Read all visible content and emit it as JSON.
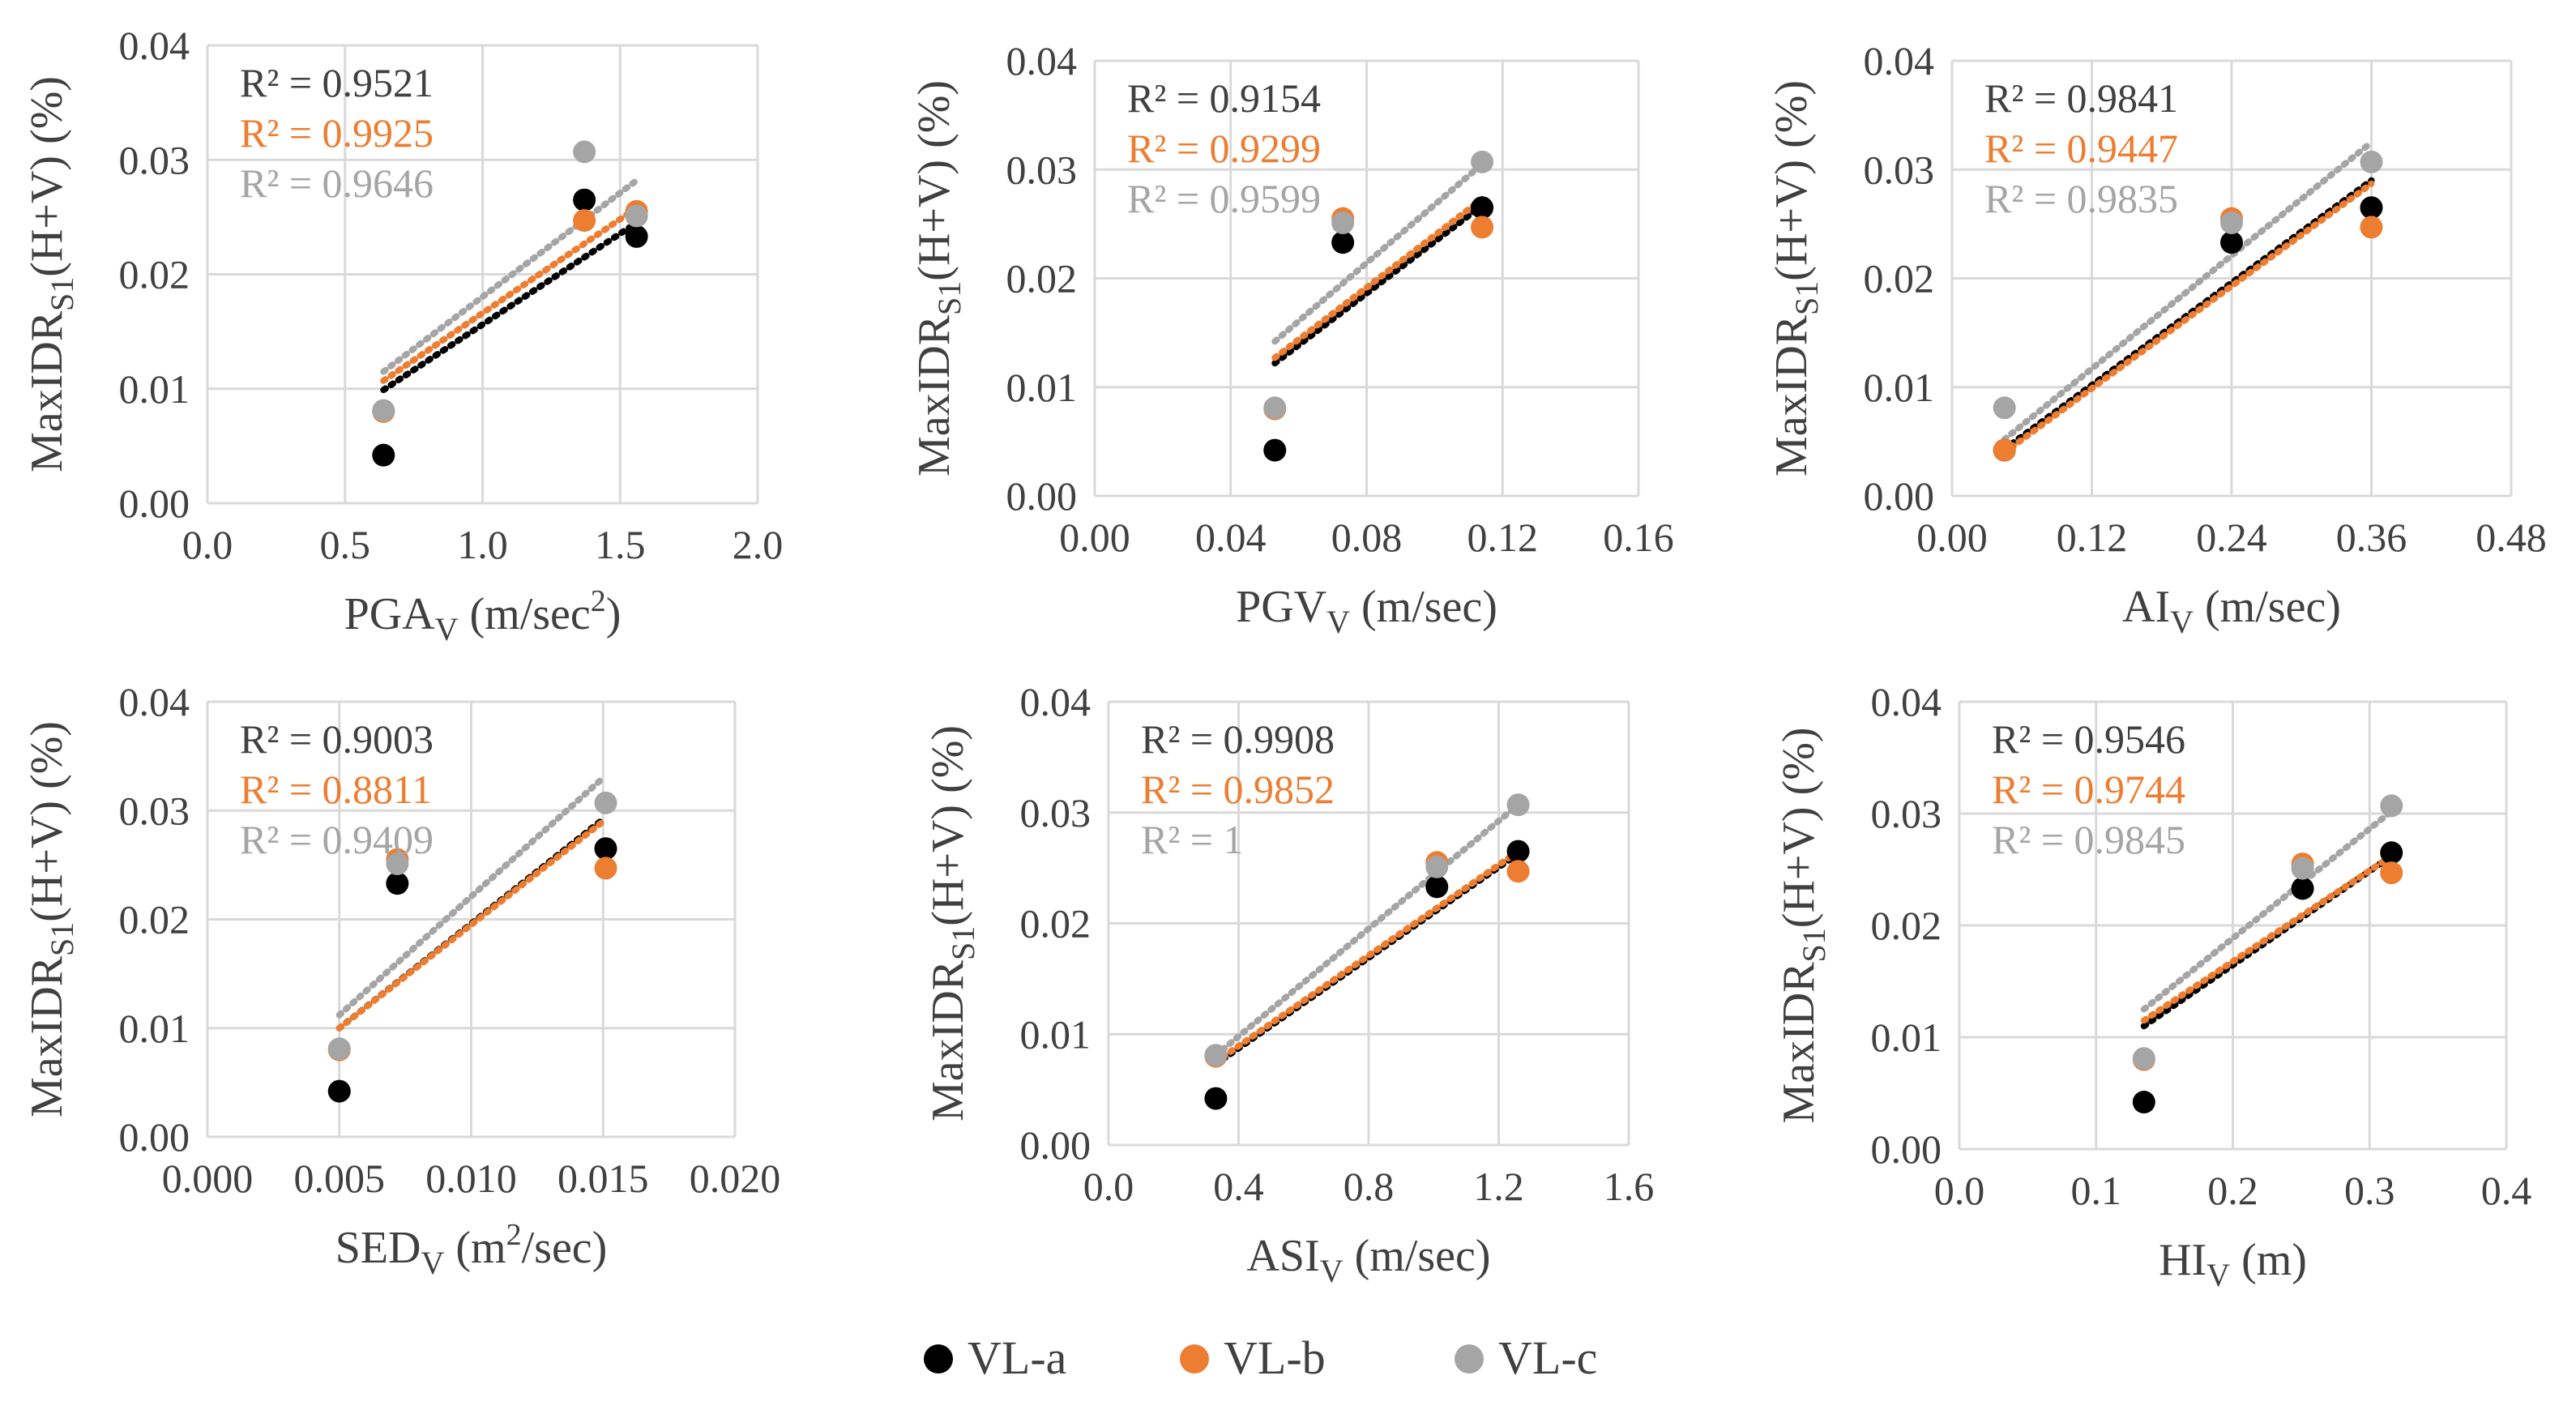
{
  "colors": {
    "VL-a": "#000000",
    "VL-b": "#ED7D31",
    "VL-c": "#A5A5A5",
    "grid": "#D9D9D9",
    "text": "#404040"
  },
  "legend": [
    {
      "label": "VL-a",
      "color": "#000000"
    },
    {
      "label": "VL-b",
      "color": "#ED7D31"
    },
    {
      "label": "VL-c",
      "color": "#A5A5A5"
    }
  ],
  "chart_data": [
    {
      "type": "scatter",
      "xlabel_main": "PGA",
      "xlabel_sub": "V",
      "xlabel_unit_pre": " (m/sec",
      "xlabel_unit_sup": "2",
      "xlabel_unit_post": ")",
      "ylabel_main": "MaxIDR",
      "ylabel_sub": "S1",
      "ylabel_rest": "(H+V) (%)",
      "xlim": [
        0,
        2.0
      ],
      "ylim": [
        0,
        0.04
      ],
      "xticks": [
        "0.0",
        "0.5",
        "1.0",
        "1.5",
        "2.0"
      ],
      "yticks": [
        "0.00",
        "0.01",
        "0.02",
        "0.03",
        "0.04"
      ],
      "trend_x": [
        0.64,
        1.56
      ],
      "series": [
        {
          "name": "VL-a",
          "x": [
            0.64,
            1.37,
            1.56
          ],
          "y": [
            0.0042,
            0.0265,
            0.0233
          ],
          "r2": "R² = 0.9521",
          "trend_y": [
            0.0099,
            0.0245
          ]
        },
        {
          "name": "VL-b",
          "x": [
            0.64,
            1.37,
            1.56
          ],
          "y": [
            0.008,
            0.0247,
            0.0255
          ],
          "r2": "R² = 0.9925",
          "trend_y": [
            0.0107,
            0.0258
          ]
        },
        {
          "name": "VL-c",
          "x": [
            0.64,
            1.37,
            1.56
          ],
          "y": [
            0.0081,
            0.0307,
            0.0251
          ],
          "r2": "R² = 0.9646",
          "trend_y": [
            0.0115,
            0.0282
          ]
        }
      ]
    },
    {
      "type": "scatter",
      "xlabel_main": "PGV",
      "xlabel_sub": "V",
      "xlabel_unit_pre": " (m/sec)",
      "xlabel_unit_sup": "",
      "xlabel_unit_post": "",
      "ylabel_main": "MaxIDR",
      "ylabel_sub": "S1",
      "ylabel_rest": "(H+V) (%)",
      "xlim": [
        0,
        0.16
      ],
      "ylim": [
        0,
        0.04
      ],
      "xticks": [
        "0.00",
        "0.04",
        "0.08",
        "0.12",
        "0.16"
      ],
      "yticks": [
        "0.00",
        "0.01",
        "0.02",
        "0.03",
        "0.04"
      ],
      "trend_x": [
        0.053,
        0.114
      ],
      "series": [
        {
          "name": "VL-a",
          "x": [
            0.053,
            0.073,
            0.114
          ],
          "y": [
            0.0042,
            0.0233,
            0.0265
          ],
          "r2": "R² = 0.9154",
          "trend_y": [
            0.0122,
            0.0267
          ]
        },
        {
          "name": "VL-b",
          "x": [
            0.053,
            0.073,
            0.114
          ],
          "y": [
            0.008,
            0.0255,
            0.0247
          ],
          "r2": "R² = 0.9299",
          "trend_y": [
            0.0127,
            0.0273
          ]
        },
        {
          "name": "VL-c",
          "x": [
            0.053,
            0.073,
            0.114
          ],
          "y": [
            0.0081,
            0.0251,
            0.0307
          ],
          "r2": "R² = 0.9599",
          "trend_y": [
            0.0142,
            0.0305
          ]
        }
      ]
    },
    {
      "type": "scatter",
      "xlabel_main": "AI",
      "xlabel_sub": "V",
      "xlabel_unit_pre": " (m/sec)",
      "xlabel_unit_sup": "",
      "xlabel_unit_post": "",
      "ylabel_main": "MaxIDR",
      "ylabel_sub": "S1",
      "ylabel_rest": "(H+V) (%)",
      "xlim": [
        0,
        0.48
      ],
      "ylim": [
        0,
        0.04
      ],
      "xticks": [
        "0.00",
        "0.12",
        "0.24",
        "0.36",
        "0.48"
      ],
      "yticks": [
        "0.00",
        "0.01",
        "0.02",
        "0.03",
        "0.04"
      ],
      "trend_x": [
        0.045,
        0.36
      ],
      "series": [
        {
          "name": "VL-a",
          "x": [
            0.045,
            0.24,
            0.36
          ],
          "y": [
            0.0042,
            0.0233,
            0.0265
          ],
          "r2": "R² = 0.9841",
          "trend_y": [
            0.0043,
            0.029
          ]
        },
        {
          "name": "VL-b",
          "x": [
            0.045,
            0.24,
            0.36
          ],
          "y": [
            0.0042,
            0.0255,
            0.0247
          ],
          "r2": "R² = 0.9447",
          "trend_y": [
            0.004,
            0.0287
          ]
        },
        {
          "name": "VL-c",
          "x": [
            0.045,
            0.24,
            0.36
          ],
          "y": [
            0.0081,
            0.0251,
            0.0307
          ],
          "r2": "R² = 0.9835",
          "trend_y": [
            0.0052,
            0.0325
          ]
        }
      ]
    },
    {
      "type": "scatter",
      "xlabel_main": "SED",
      "xlabel_sub": "V",
      "xlabel_unit_pre": " (m",
      "xlabel_unit_sup": "2",
      "xlabel_unit_post": "/sec)",
      "ylabel_main": "MaxIDR",
      "ylabel_sub": "S1",
      "ylabel_rest": "(H+V) (%)",
      "xlim": [
        0,
        0.02
      ],
      "ylim": [
        0,
        0.04
      ],
      "xticks": [
        "0.000",
        "0.005",
        "0.010",
        "0.015",
        "0.020"
      ],
      "yticks": [
        "0.00",
        "0.01",
        "0.02",
        "0.03",
        "0.04"
      ],
      "trend_x": [
        0.005,
        0.015
      ],
      "series": [
        {
          "name": "VL-a",
          "x": [
            0.005,
            0.0072,
            0.0151
          ],
          "y": [
            0.0042,
            0.0233,
            0.0265
          ],
          "r2": "R² = 0.9003",
          "trend_y": [
            0.01,
            0.0292
          ]
        },
        {
          "name": "VL-b",
          "x": [
            0.005,
            0.0072,
            0.0151
          ],
          "y": [
            0.008,
            0.0255,
            0.0247
          ],
          "r2": "R² = 0.8811",
          "trend_y": [
            0.01,
            0.029
          ]
        },
        {
          "name": "VL-c",
          "x": [
            0.005,
            0.0072,
            0.0151
          ],
          "y": [
            0.0081,
            0.0251,
            0.0307
          ],
          "r2": "R² = 0.9409",
          "trend_y": [
            0.0112,
            0.033
          ]
        }
      ]
    },
    {
      "type": "scatter",
      "xlabel_main": "ASI",
      "xlabel_sub": "V",
      "xlabel_unit_pre": " (m/sec)",
      "xlabel_unit_sup": "",
      "xlabel_unit_post": "",
      "ylabel_main": "MaxIDR",
      "ylabel_sub": "S1",
      "ylabel_rest": "(H+V) (%)",
      "xlim": [
        0,
        1.6
      ],
      "ylim": [
        0,
        0.04
      ],
      "xticks": [
        "0.0",
        "0.4",
        "0.8",
        "1.2",
        "1.6"
      ],
      "yticks": [
        "0.00",
        "0.01",
        "0.02",
        "0.03",
        "0.04"
      ],
      "trend_x": [
        0.33,
        1.26
      ],
      "series": [
        {
          "name": "VL-a",
          "x": [
            0.33,
            1.01,
            1.26
          ],
          "y": [
            0.0042,
            0.0233,
            0.0265
          ],
          "r2": "R² = 0.9908",
          "trend_y": [
            0.0073,
            0.0263
          ]
        },
        {
          "name": "VL-b",
          "x": [
            0.33,
            1.01,
            1.26
          ],
          "y": [
            0.008,
            0.0255,
            0.0247
          ],
          "r2": "R² = 0.9852",
          "trend_y": [
            0.0075,
            0.0265
          ]
        },
        {
          "name": "VL-c",
          "x": [
            0.33,
            1.01,
            1.26
          ],
          "y": [
            0.0081,
            0.0251,
            0.0307
          ],
          "r2": "R² = 1",
          "trend_y": [
            0.0081,
            0.0307
          ]
        }
      ]
    },
    {
      "type": "scatter",
      "xlabel_main": "HI",
      "xlabel_sub": "V",
      "xlabel_unit_pre": " (m)",
      "xlabel_unit_sup": "",
      "xlabel_unit_post": "",
      "ylabel_main": "MaxIDR",
      "ylabel_sub": "S1",
      "ylabel_rest": "(H+V) (%)",
      "xlim": [
        0,
        0.4
      ],
      "ylim": [
        0,
        0.04
      ],
      "xticks": [
        "0.0",
        "0.1",
        "0.2",
        "0.3",
        "0.4"
      ],
      "yticks": [
        "0.00",
        "0.01",
        "0.02",
        "0.03",
        "0.04"
      ],
      "trend_x": [
        0.135,
        0.316
      ],
      "series": [
        {
          "name": "VL-a",
          "x": [
            0.135,
            0.251,
            0.316
          ],
          "y": [
            0.0042,
            0.0233,
            0.0265
          ],
          "r2": "R² = 0.9546",
          "trend_y": [
            0.011,
            0.0262
          ]
        },
        {
          "name": "VL-b",
          "x": [
            0.135,
            0.251,
            0.316
          ],
          "y": [
            0.008,
            0.0255,
            0.0247
          ],
          "r2": "R² = 0.9744",
          "trend_y": [
            0.0115,
            0.0262
          ]
        },
        {
          "name": "VL-c",
          "x": [
            0.135,
            0.251,
            0.316
          ],
          "y": [
            0.0081,
            0.0251,
            0.0307
          ],
          "r2": "R² = 0.9845",
          "trend_y": [
            0.0125,
            0.0302
          ]
        }
      ]
    }
  ]
}
